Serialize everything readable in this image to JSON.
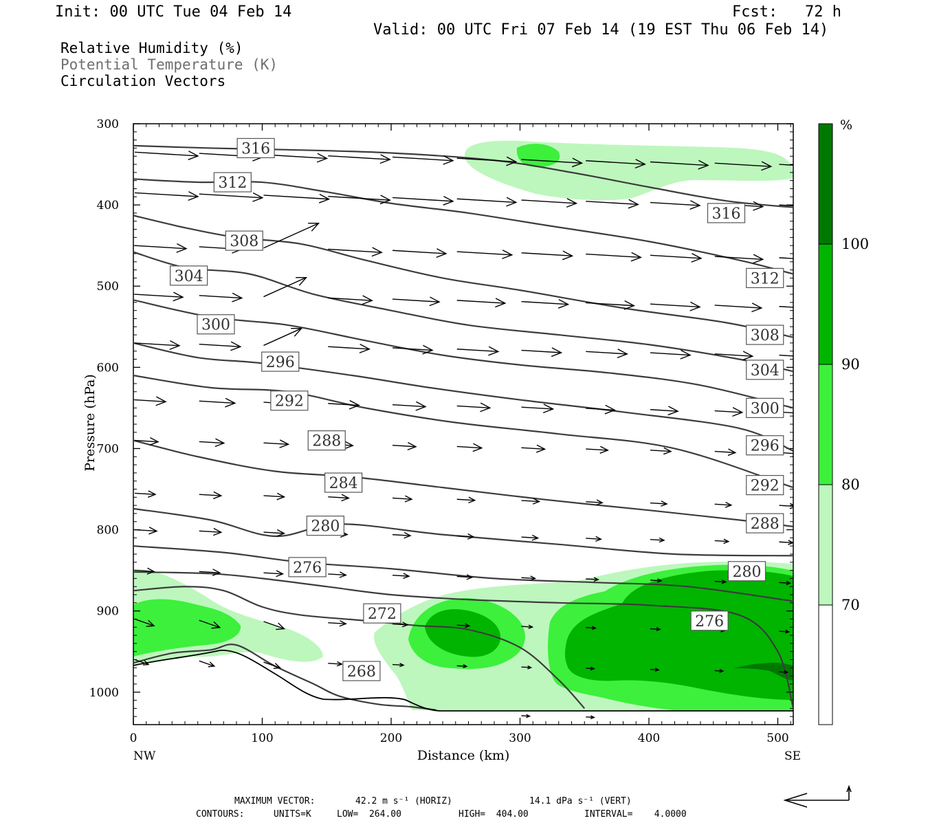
{
  "header": {
    "init": "Init: 00 UTC Tue 04 Feb 14",
    "fcst": "Fcst:   72 h",
    "valid": "Valid: 00 UTC Fri 07 Feb 14 (19 EST Thu 06 Feb 14)"
  },
  "titles": {
    "rh": "Relative Humidity (%)",
    "theta": "Potential Temperature (K)",
    "vectors": "Circulation Vectors"
  },
  "colors": {
    "rh70": "#bdf7bd",
    "rh80": "#3cf03c",
    "rh90": "#00b400",
    "rh100": "#007800",
    "contour": "#3c3c3c",
    "theta_title": "#6e6e6e"
  },
  "chart_data": {
    "type": "cross-section",
    "ylabel": "Pressure (hPa)",
    "xlabel": "Distance (km)",
    "x_left_label": "NW",
    "x_right_label": "SE",
    "xlim": [
      0,
      512
    ],
    "ylim": [
      1040,
      300
    ],
    "x_ticks": [
      0,
      100,
      200,
      300,
      400,
      500
    ],
    "y_ticks": [
      300,
      400,
      500,
      600,
      700,
      800,
      900,
      1000
    ],
    "colorbar": {
      "unit": "%",
      "levels": [
        70,
        80,
        90,
        100
      ],
      "labels": [
        "70",
        "80",
        "90",
        "100"
      ]
    },
    "theta_contours": [
      {
        "value": 316,
        "points": [
          [
            0,
            327
          ],
          [
            60,
            330
          ],
          [
            120,
            332
          ],
          [
            200,
            336
          ],
          [
            280,
            345
          ],
          [
            340,
            360
          ],
          [
            400,
            378
          ],
          [
            460,
            395
          ],
          [
            512,
            403
          ]
        ]
      },
      {
        "value": 312,
        "points": [
          [
            0,
            368
          ],
          [
            50,
            372
          ],
          [
            100,
            372
          ],
          [
            150,
            384
          ],
          [
            200,
            398
          ],
          [
            260,
            410
          ],
          [
            320,
            425
          ],
          [
            400,
            445
          ],
          [
            470,
            468
          ],
          [
            512,
            485
          ]
        ]
      },
      {
        "value": 308,
        "points": [
          [
            0,
            413
          ],
          [
            40,
            428
          ],
          [
            80,
            440
          ],
          [
            130,
            448
          ],
          [
            180,
            468
          ],
          [
            240,
            490
          ],
          [
            300,
            505
          ],
          [
            380,
            527
          ],
          [
            460,
            545
          ],
          [
            512,
            563
          ]
        ]
      },
      {
        "value": 304,
        "points": [
          [
            0,
            458
          ],
          [
            40,
            477
          ],
          [
            90,
            485
          ],
          [
            140,
            510
          ],
          [
            200,
            530
          ],
          [
            260,
            548
          ],
          [
            330,
            560
          ],
          [
            400,
            572
          ],
          [
            470,
            590
          ],
          [
            512,
            605
          ]
        ]
      },
      {
        "value": 300,
        "points": [
          [
            0,
            517
          ],
          [
            60,
            538
          ],
          [
            120,
            548
          ],
          [
            180,
            567
          ],
          [
            240,
            585
          ],
          [
            300,
            597
          ],
          [
            370,
            607
          ],
          [
            440,
            622
          ],
          [
            512,
            650
          ]
        ]
      },
      {
        "value": 296,
        "points": [
          [
            0,
            570
          ],
          [
            50,
            588
          ],
          [
            100,
            595
          ],
          [
            170,
            610
          ],
          [
            230,
            625
          ],
          [
            300,
            640
          ],
          [
            380,
            655
          ],
          [
            470,
            675
          ],
          [
            512,
            703
          ]
        ]
      },
      {
        "value": 292,
        "points": [
          [
            0,
            610
          ],
          [
            60,
            625
          ],
          [
            120,
            630
          ],
          [
            180,
            650
          ],
          [
            250,
            668
          ],
          [
            330,
            682
          ],
          [
            420,
            700
          ],
          [
            512,
            748
          ]
        ]
      },
      {
        "value": 288,
        "points": [
          [
            0,
            690
          ],
          [
            50,
            710
          ],
          [
            110,
            728
          ],
          [
            170,
            735
          ],
          [
            240,
            748
          ],
          [
            320,
            763
          ],
          [
            400,
            776
          ],
          [
            470,
            788
          ],
          [
            512,
            796
          ]
        ]
      },
      {
        "value": 284,
        "points": [
          [
            0,
            774
          ],
          [
            60,
            788
          ],
          [
            110,
            808
          ],
          [
            160,
            793
          ],
          [
            240,
            806
          ],
          [
            330,
            818
          ],
          [
            420,
            830
          ],
          [
            512,
            832
          ]
        ]
      },
      {
        "value": 280,
        "points": [
          [
            0,
            820
          ],
          [
            70,
            828
          ],
          [
            130,
            840
          ],
          [
            200,
            848
          ],
          [
            280,
            860
          ],
          [
            360,
            865
          ],
          [
            430,
            870
          ],
          [
            512,
            888
          ]
        ]
      },
      {
        "value": 276,
        "points": [
          [
            0,
            852
          ],
          [
            60,
            854
          ],
          [
            100,
            860
          ],
          [
            150,
            870
          ],
          [
            200,
            880
          ],
          [
            260,
            886
          ],
          [
            330,
            890
          ],
          [
            400,
            893
          ],
          [
            470,
            905
          ],
          [
            500,
            950
          ],
          [
            512,
            1020
          ]
        ]
      },
      {
        "value": 272,
        "points": [
          [
            0,
            875
          ],
          [
            40,
            870
          ],
          [
            70,
            875
          ],
          [
            100,
            895
          ],
          [
            130,
            905
          ],
          [
            180,
            912
          ],
          [
            220,
            918
          ],
          [
            260,
            923
          ],
          [
            300,
            945
          ],
          [
            330,
            985
          ],
          [
            350,
            1020
          ]
        ]
      },
      {
        "value": 268,
        "points": [
          [
            0,
            964
          ],
          [
            30,
            952
          ],
          [
            60,
            948
          ],
          [
            80,
            942
          ],
          [
            110,
            968
          ],
          [
            140,
            990
          ],
          [
            160,
            1005
          ],
          [
            190,
            1015
          ],
          [
            215,
            1018
          ],
          [
            235,
            1022
          ]
        ]
      }
    ],
    "humidity_regions": [
      {
        "level": "70-80",
        "description": "upper-level moist layer near 330-380 hPa, 260-505 km"
      },
      {
        "level": "80-90",
        "description": "small core near 345 hPa, 300-330 km"
      },
      {
        "level": "70-100",
        "description": "low-level moist layer below 850 hPa, NW and SE parts of section"
      },
      {
        "level": "90-100",
        "description": "lower-level core 900-1010 hPa, 340-512 km and 230-290 km"
      }
    ],
    "vector_legend": {
      "max_vector_label": "MAXIMUM VECTOR:",
      "horiz": "42.2 m s⁻¹ (HORIZ)",
      "vert": "14.1 dPa s⁻¹ (VERT)"
    },
    "contour_info": {
      "label": "CONTOURS:",
      "units": "UNITS=K",
      "low": "LOW=  264.00",
      "high": "HIGH=  404.00",
      "interval": "INTERVAL=    4.0000"
    }
  }
}
